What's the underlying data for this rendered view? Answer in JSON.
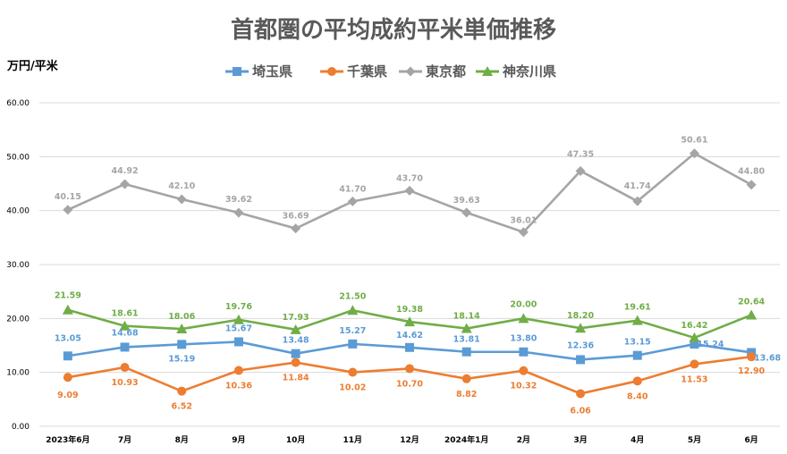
{
  "chart_data": {
    "type": "line",
    "title": "首都圏の平均成約平米単価推移",
    "ylabel": "万円/平米",
    "xlabel": "",
    "ylim": [
      0,
      60
    ],
    "yticks": [
      "0.00",
      "10.00",
      "20.00",
      "30.00",
      "40.00",
      "50.00",
      "60.00"
    ],
    "grid": true,
    "legend_position": "top",
    "categories": [
      "2023年6月",
      "7月",
      "8月",
      "9月",
      "10月",
      "11月",
      "12月",
      "2024年1月",
      "2月",
      "3月",
      "4月",
      "5月",
      "6月"
    ],
    "series": [
      {
        "name": "埼玉県",
        "color": "#5b9bd5",
        "marker": "square",
        "values": [
          13.05,
          14.68,
          15.19,
          15.67,
          13.48,
          15.27,
          14.62,
          13.81,
          13.8,
          12.36,
          13.15,
          15.24,
          13.68
        ],
        "labels": [
          "13.05",
          "14.68",
          "15.19",
          "15.67",
          "13.48",
          "15.27",
          "14.62",
          "13.81",
          "13.80",
          "12.36",
          "13.15",
          "15.24",
          "13.68"
        ]
      },
      {
        "name": "千葉県",
        "color": "#ed7d31",
        "marker": "circle",
        "values": [
          9.09,
          10.93,
          6.52,
          10.36,
          11.84,
          10.02,
          10.7,
          8.82,
          10.32,
          6.06,
          8.4,
          11.53,
          12.9
        ],
        "labels": [
          "9.09",
          "10.93",
          "6.52",
          "10.36",
          "11.84",
          "10.02",
          "10.70",
          "8.82",
          "10.32",
          "6.06",
          "8.40",
          "11.53",
          "12.90"
        ]
      },
      {
        "name": "東京都",
        "color": "#a5a5a5",
        "marker": "diamond",
        "values": [
          40.15,
          44.92,
          42.1,
          39.62,
          36.69,
          41.7,
          43.7,
          39.63,
          36.01,
          47.35,
          41.74,
          50.61,
          44.8
        ],
        "labels": [
          "40.15",
          "44.92",
          "42.10",
          "39.62",
          "36.69",
          "41.70",
          "43.70",
          "39.63",
          "36.01",
          "47.35",
          "41.74",
          "50.61",
          "44.80"
        ]
      },
      {
        "name": "神奈川県",
        "color": "#70ad47",
        "marker": "triangle",
        "values": [
          21.59,
          18.61,
          18.06,
          19.76,
          17.93,
          21.5,
          19.38,
          18.14,
          20.0,
          18.2,
          19.61,
          16.42,
          20.64
        ],
        "labels": [
          "21.59",
          "18.61",
          "18.06",
          "19.76",
          "17.93",
          "21.50",
          "19.38",
          "18.14",
          "20.00",
          "18.20",
          "19.61",
          "16.42",
          "20.64"
        ]
      }
    ]
  }
}
